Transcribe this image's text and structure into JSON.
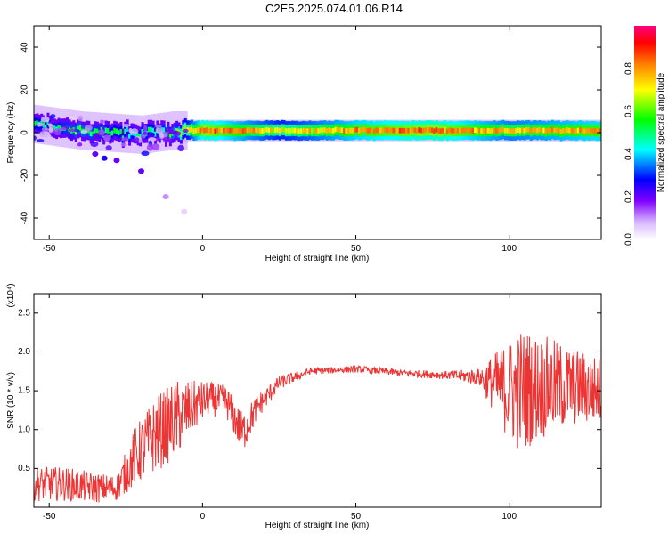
{
  "title": "C2E5.2025.074.01.06.R14",
  "chart_data": [
    {
      "type": "heatmap",
      "xlabel": "Height of straight line (km)",
      "ylabel": "Frequency (Hz)",
      "xlim": [
        -55,
        130
      ],
      "ylim": [
        -50,
        50
      ],
      "xticks": [
        -50,
        0,
        50,
        100
      ],
      "yticks": [
        40,
        20,
        0,
        -20,
        -40
      ],
      "colorbar": {
        "label": "Normalized spectral amplitude",
        "range": [
          0,
          1
        ],
        "ticks": [
          0.0,
          0.2,
          0.4,
          0.6,
          0.8
        ],
        "colormap": [
          "#ffffff",
          "#a0a0ff",
          "#0000ff",
          "#00ffff",
          "#00ff00",
          "#ffff00",
          "#ff8000",
          "#ff0000",
          "#ff00ff"
        ]
      },
      "ridge": {
        "center_hz": 1,
        "description_points": [
          {
            "x": -50,
            "f": 3,
            "amp": 0.5
          },
          {
            "x": -40,
            "f": 1,
            "amp": 0.55
          },
          {
            "x": -30,
            "f": 0,
            "amp": 0.5
          },
          {
            "x": -20,
            "f": -1,
            "amp": 0.45
          },
          {
            "x": -10,
            "f": 1,
            "amp": 0.55
          },
          {
            "x": 0,
            "f": 1,
            "amp": 0.85
          },
          {
            "x": 25,
            "f": 1,
            "amp": 0.7
          },
          {
            "x": 50,
            "f": 1,
            "amp": 0.8
          },
          {
            "x": 75,
            "f": 1,
            "amp": 0.85
          },
          {
            "x": 100,
            "f": 1,
            "amp": 0.75
          },
          {
            "x": 125,
            "f": 1,
            "amp": 0.8
          }
        ],
        "scatter_points": [
          {
            "x": -35,
            "f": -10,
            "amp": 0.2
          },
          {
            "x": -32,
            "f": -12,
            "amp": 0.25
          },
          {
            "x": -28,
            "f": -13,
            "amp": 0.2
          },
          {
            "x": -20,
            "f": -18,
            "amp": 0.2
          },
          {
            "x": -12,
            "f": -30,
            "amp": 0.1
          },
          {
            "x": -6,
            "f": -37,
            "amp": 0.05
          }
        ]
      }
    },
    {
      "type": "line",
      "xlabel": "Height of straight line (km)",
      "ylabel": "SNR (10 * v/v)",
      "scale_label": "(x10⁴)",
      "xlim": [
        -55,
        130
      ],
      "ylim": [
        0,
        2.75
      ],
      "xticks": [
        -50,
        0,
        50,
        100
      ],
      "yticks": [
        0.5,
        1.0,
        1.5,
        2.0,
        2.5
      ],
      "ytick_labels": [
        "0.5",
        "1.0",
        "1.5",
        "2.0",
        "2.5"
      ],
      "color": "#ee3333",
      "envelope": {
        "x": [
          -55,
          -45,
          -35,
          -28,
          -22,
          -15,
          -8,
          -3,
          2,
          8,
          13,
          18,
          25,
          35,
          50,
          65,
          80,
          90,
          95,
          100,
          104,
          108,
          115,
          122,
          130
        ],
        "mean": [
          0.3,
          0.3,
          0.25,
          0.25,
          0.65,
          0.95,
          1.15,
          1.3,
          1.4,
          1.35,
          0.95,
          1.3,
          1.6,
          1.75,
          1.78,
          1.73,
          1.7,
          1.68,
          1.6,
          1.5,
          1.5,
          1.55,
          1.55,
          1.55,
          1.5
        ],
        "spread": [
          0.2,
          0.2,
          0.18,
          0.15,
          0.35,
          0.45,
          0.45,
          0.3,
          0.2,
          0.2,
          0.25,
          0.15,
          0.08,
          0.04,
          0.04,
          0.04,
          0.05,
          0.1,
          0.35,
          0.6,
          0.75,
          0.65,
          0.55,
          0.45,
          0.4
        ]
      }
    }
  ]
}
